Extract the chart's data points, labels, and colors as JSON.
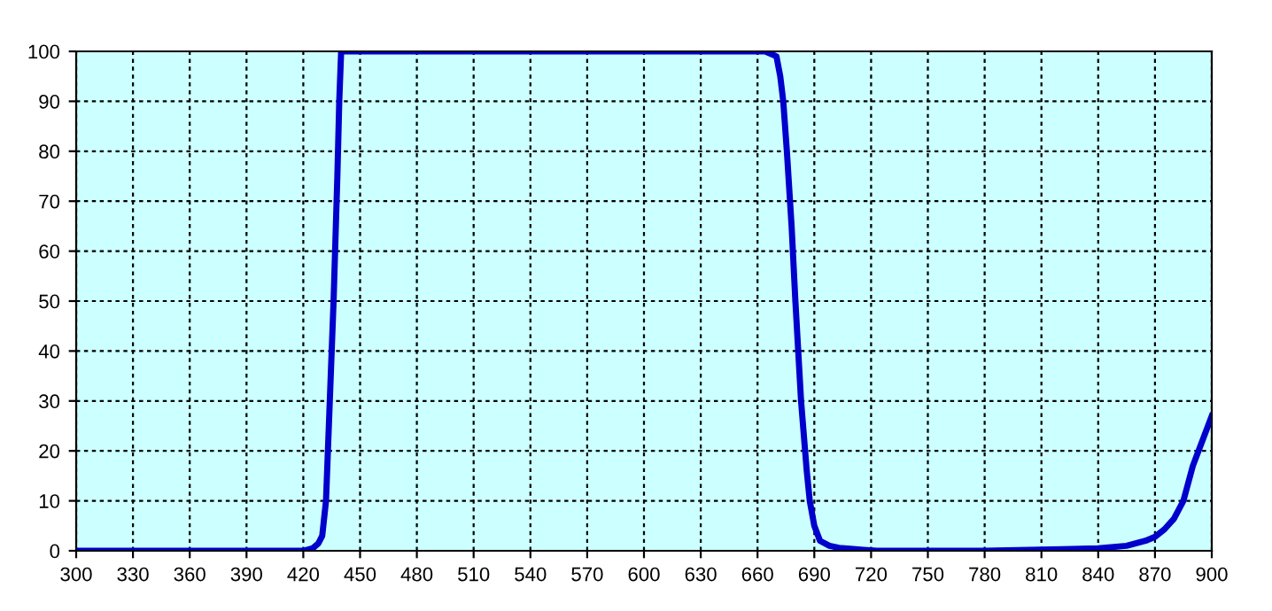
{
  "chart_data": {
    "type": "line",
    "x": [
      300,
      420,
      425,
      428,
      430,
      432,
      434,
      436,
      438,
      439,
      440,
      500,
      600,
      664,
      670,
      672,
      673.6,
      675.5,
      678,
      680,
      683,
      686,
      687.6,
      690,
      693,
      698,
      703,
      709,
      716,
      723,
      780,
      821,
      840,
      855,
      865,
      870,
      875,
      880,
      885,
      890,
      895,
      900
    ],
    "series": [
      {
        "color": "#0000cc",
        "values": [
          0,
          0,
          0.5,
          1.5,
          3,
          10,
          30,
          50,
          75,
          90,
          100,
          100,
          100,
          100,
          99,
          95,
          90,
          80,
          65,
          50,
          30,
          16,
          10,
          5,
          2,
          1,
          0.6,
          0.4,
          0.2,
          0,
          0,
          0.3,
          0.5,
          1,
          2,
          2.8,
          4.3,
          6.4,
          10,
          17,
          22,
          27
        ]
      }
    ],
    "xlim": [
      300,
      900
    ],
    "xticks": [
      300,
      330,
      360,
      390,
      420,
      450,
      480,
      510,
      540,
      570,
      600,
      630,
      660,
      690,
      720,
      750,
      780,
      810,
      840,
      870,
      900
    ],
    "ylim": [
      0,
      100
    ],
    "yticks": [
      0,
      10,
      20,
      30,
      40,
      50,
      60,
      70,
      80,
      90,
      100
    ],
    "grid": true,
    "marker": "none",
    "line_style": "solid",
    "legend": false
  }
}
